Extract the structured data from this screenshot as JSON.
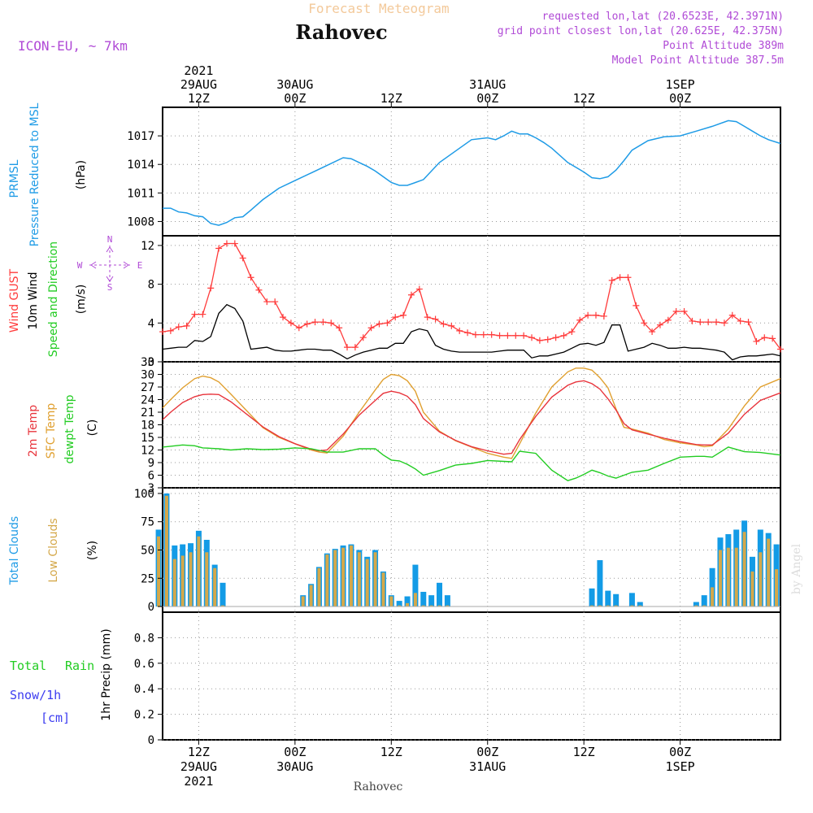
{
  "header": {
    "super_title": "Forecast Meteogram",
    "location": "Rahovec",
    "model": "ICON-EU, ~ 7km",
    "requested": "requested lon,lat (20.6523E, 42.3971N)",
    "grid": "grid point closest lon,lat (20.625E, 42.375N)",
    "point_alt": "Point Altitude 389m",
    "model_alt": "Model Point Altitude 387.5m",
    "footer_location": "Rahovec",
    "watermark": "by Angel"
  },
  "colors": {
    "pressure": "#1e9be6",
    "gust": "#ff3b3b",
    "wind": "#000000",
    "temp2m": "#e8343c",
    "sfc": "#e0a030",
    "dew": "#22cc22",
    "total_cloud": "#139be6",
    "low_cloud": "#d4a84a",
    "title_orange": "#f3c99a",
    "purple": "#b04ad6",
    "rain": "#22cc22",
    "snow": "#3c3cf0"
  },
  "time_axis": {
    "top_labels": [
      {
        "hour": 12,
        "l1": "2021",
        "l2": "29AUG",
        "l3": "12Z"
      },
      {
        "hour": 24,
        "l1": "",
        "l2": "30AUG",
        "l3": "00Z"
      },
      {
        "hour": 36,
        "l1": "",
        "l2": "",
        "l3": "12Z"
      },
      {
        "hour": 48,
        "l1": "",
        "l2": "31AUG",
        "l3": "00Z"
      },
      {
        "hour": 60,
        "l1": "",
        "l2": "",
        "l3": "12Z"
      },
      {
        "hour": 72,
        "l1": "",
        "l2": "1SEP",
        "l3": "00Z"
      }
    ],
    "bottom_labels": [
      {
        "hour": 12,
        "l1": "12Z",
        "l2": "29AUG",
        "l3": "2021"
      },
      {
        "hour": 24,
        "l1": "00Z",
        "l2": "30AUG",
        "l3": ""
      },
      {
        "hour": 36,
        "l1": "12Z",
        "l2": "",
        "l3": ""
      },
      {
        "hour": 48,
        "l1": "00Z",
        "l2": "31AUG",
        "l3": ""
      },
      {
        "hour": 60,
        "l1": "12Z",
        "l2": "",
        "l3": ""
      },
      {
        "hour": 72,
        "l1": "00Z",
        "l2": "1SEP",
        "l3": ""
      }
    ]
  },
  "panels": {
    "pressure": {
      "label1": "PRMSL",
      "label2": "Pressure Reduced to MSL",
      "unit": "(hPa)"
    },
    "wind": {
      "label_gust": "Wind GUST",
      "label_wind": "10m Wind",
      "label_dir": "Speed and Direction",
      "unit": "(m/s)",
      "compass_n": "N",
      "compass_s": "S",
      "compass_w": "W",
      "compass_e": "E"
    },
    "temp": {
      "label1": "2m Temp",
      "label2": "SFC Temp",
      "label3": "dewpt Temp",
      "unit": "(C)"
    },
    "cloud": {
      "label1": "Total Clouds",
      "label2": "Low Clouds",
      "unit": "(%)"
    },
    "precip": {
      "label_rain1": "Total",
      "label_rain2": "Rain",
      "label_snow1": "Snow/1h",
      "label_snow2": "[cm]",
      "label_axis": "1hr Precip (mm)"
    }
  },
  "chart_data": [
    {
      "type": "line",
      "name": "PRMSL",
      "x_range_hours": [
        7.5,
        84.5
      ],
      "ylim": [
        1006.5,
        1020
      ],
      "yticks": [
        1008,
        1011,
        1014,
        1017
      ],
      "x": [
        7.5,
        8.5,
        9.5,
        10.5,
        11.5,
        12.5,
        13.5,
        14.5,
        15.5,
        16.5,
        17.5,
        18.5,
        20,
        22,
        24,
        26,
        28,
        30,
        31,
        32,
        33,
        34,
        35,
        36,
        37,
        38,
        39,
        40,
        42,
        44,
        46,
        48,
        49,
        50,
        51,
        52,
        53,
        54,
        55,
        56,
        58,
        60,
        61,
        62,
        63,
        64,
        65,
        66,
        68,
        70,
        72,
        74,
        76,
        78,
        79,
        80,
        81,
        82,
        83,
        84.5
      ],
      "series": [
        {
          "name": "PRMSL",
          "values": [
            1009.4,
            1009.4,
            1009.0,
            1008.9,
            1008.6,
            1008.5,
            1007.8,
            1007.6,
            1007.9,
            1008.4,
            1008.5,
            1009.2,
            1010.3,
            1011.5,
            1012.3,
            1013.1,
            1013.9,
            1014.7,
            1014.6,
            1014.2,
            1013.8,
            1013.3,
            1012.7,
            1012.1,
            1011.8,
            1011.8,
            1012.1,
            1012.4,
            1014.2,
            1015.4,
            1016.6,
            1016.8,
            1016.6,
            1017.0,
            1017.5,
            1017.2,
            1017.2,
            1016.8,
            1016.3,
            1015.7,
            1014.2,
            1013.2,
            1012.6,
            1012.5,
            1012.7,
            1013.4,
            1014.4,
            1015.5,
            1016.5,
            1016.9,
            1017.0,
            1017.5,
            1018.0,
            1018.6,
            1018.5,
            1018.0,
            1017.5,
            1017.0,
            1016.6,
            1016.2
          ]
        }
      ]
    },
    {
      "type": "line",
      "name": "Wind",
      "x_range_hours": [
        7.5,
        84.5
      ],
      "ylim": [
        0,
        13
      ],
      "yticks": [
        0,
        4,
        8,
        12
      ],
      "x": [
        7.5,
        8.5,
        9.5,
        10.5,
        11.5,
        12.5,
        13.5,
        14.5,
        15.5,
        16.5,
        17.5,
        18.5,
        19.5,
        20.5,
        21.5,
        22.5,
        23.5,
        24.5,
        25.5,
        26.5,
        27.5,
        28.5,
        29.5,
        30.5,
        31.5,
        32.5,
        33.5,
        34.5,
        35.5,
        36.5,
        37.5,
        38.5,
        39.5,
        40.5,
        41.5,
        42.5,
        43.5,
        44.5,
        45.5,
        46.5,
        47.5,
        48.5,
        49.5,
        50.5,
        51.5,
        52.5,
        53.5,
        54.5,
        55.5,
        56.5,
        57.5,
        58.5,
        59.5,
        60.5,
        61.5,
        62.5,
        63.5,
        64.5,
        65.5,
        66.5,
        67.5,
        68.5,
        69.5,
        70.5,
        71.5,
        72.5,
        73.5,
        74.5,
        75.5,
        76.5,
        77.5,
        78.5,
        79.5,
        80.5,
        81.5,
        82.5,
        83.5,
        84.5
      ],
      "series": [
        {
          "name": "Wind GUST",
          "values": [
            3.1,
            3.2,
            3.6,
            3.7,
            4.9,
            4.9,
            7.6,
            11.7,
            12.2,
            12.2,
            10.7,
            8.7,
            7.4,
            6.2,
            6.2,
            4.6,
            4.0,
            3.5,
            3.9,
            4.1,
            4.1,
            4.0,
            3.5,
            1.5,
            1.5,
            2.5,
            3.5,
            3.9,
            4.0,
            4.6,
            4.8,
            6.9,
            7.5,
            4.6,
            4.4,
            3.9,
            3.7,
            3.2,
            3.0,
            2.8,
            2.8,
            2.8,
            2.7,
            2.7,
            2.7,
            2.7,
            2.5,
            2.2,
            2.3,
            2.5,
            2.7,
            3.1,
            4.3,
            4.8,
            4.8,
            4.7,
            8.4,
            8.7,
            8.7,
            5.8,
            4.0,
            3.1,
            3.8,
            4.3,
            5.2,
            5.2,
            4.2,
            4.1,
            4.1,
            4.1,
            4.0,
            4.8,
            4.2,
            4.1,
            2.1,
            2.5,
            2.4,
            1.3
          ]
        },
        {
          "name": "10m Wind",
          "values": [
            1.3,
            1.4,
            1.5,
            1.5,
            2.2,
            2.1,
            2.6,
            5.0,
            5.9,
            5.5,
            4.2,
            1.3,
            1.4,
            1.5,
            1.2,
            1.1,
            1.1,
            1.2,
            1.3,
            1.3,
            1.2,
            1.2,
            0.8,
            0.3,
            0.7,
            1.0,
            1.2,
            1.4,
            1.4,
            1.9,
            1.9,
            3.1,
            3.4,
            3.2,
            1.7,
            1.3,
            1.1,
            1.0,
            1.0,
            1.0,
            1.0,
            1.0,
            1.1,
            1.2,
            1.2,
            1.2,
            0.4,
            0.6,
            0.6,
            0.8,
            1.0,
            1.4,
            1.8,
            1.9,
            1.7,
            2.0,
            3.8,
            3.8,
            1.1,
            1.3,
            1.5,
            1.9,
            1.7,
            1.4,
            1.4,
            1.5,
            1.4,
            1.4,
            1.3,
            1.2,
            1.0,
            0.2,
            0.5,
            0.6,
            0.6,
            0.7,
            0.8,
            0.6
          ]
        }
      ]
    },
    {
      "type": "line",
      "name": "Temperature",
      "x_range_hours": [
        7.5,
        84.5
      ],
      "ylim": [
        3,
        33
      ],
      "yticks": [
        3,
        6,
        9,
        12,
        15,
        18,
        21,
        24,
        27,
        30,
        33
      ],
      "x": [
        7.5,
        8.5,
        10,
        11.5,
        12.5,
        13.5,
        14.5,
        16,
        18,
        20,
        22,
        24,
        26,
        27,
        28,
        30,
        32,
        34,
        35,
        36,
        37,
        38,
        39,
        40,
        42,
        44,
        46,
        48,
        50,
        51,
        52,
        54,
        56,
        58,
        59,
        60,
        61,
        62,
        63,
        64,
        65,
        66,
        68,
        70,
        72,
        74,
        75,
        76,
        78,
        80,
        82,
        84.5
      ],
      "series": [
        {
          "name": "2m Temp",
          "values": [
            19.2,
            21.0,
            23.3,
            24.7,
            25.2,
            25.3,
            25.2,
            23.5,
            20.5,
            17.5,
            15.2,
            13.5,
            12.2,
            11.8,
            12.0,
            15.8,
            20.3,
            23.8,
            25.5,
            26.0,
            25.6,
            24.8,
            22.8,
            19.5,
            16.3,
            14.3,
            12.8,
            11.8,
            11.0,
            11.2,
            14.5,
            20.0,
            24.6,
            27.4,
            28.2,
            28.5,
            27.8,
            26.5,
            24.2,
            21.5,
            18.3,
            16.8,
            15.8,
            14.8,
            14.0,
            13.3,
            13.2,
            13.2,
            16.0,
            20.5,
            23.8,
            25.6
          ]
        },
        {
          "name": "SFC Temp",
          "values": [
            22.0,
            24.0,
            26.8,
            29.0,
            29.6,
            29.2,
            28.2,
            25.3,
            21.3,
            17.3,
            15.0,
            13.5,
            12.0,
            11.5,
            11.3,
            15.3,
            21.0,
            26.3,
            28.8,
            30.0,
            29.7,
            28.5,
            26.0,
            21.0,
            16.5,
            14.2,
            12.7,
            11.2,
            10.3,
            10.0,
            13.5,
            20.8,
            27.0,
            30.6,
            31.5,
            31.5,
            31.0,
            29.2,
            26.8,
            21.8,
            17.4,
            17.0,
            16.0,
            14.5,
            13.7,
            13.2,
            12.8,
            13.0,
            17.0,
            22.5,
            27.0,
            29.0
          ]
        },
        {
          "name": "dewpt Temp",
          "values": [
            12.7,
            12.9,
            13.2,
            13.0,
            12.5,
            12.4,
            12.3,
            12.0,
            12.3,
            12.1,
            12.2,
            12.5,
            12.3,
            11.9,
            11.5,
            11.5,
            12.3,
            12.3,
            10.8,
            9.6,
            9.4,
            8.6,
            7.5,
            6.0,
            7.1,
            8.4,
            8.8,
            9.5,
            9.3,
            9.2,
            11.7,
            11.2,
            7.2,
            4.7,
            5.3,
            6.2,
            7.2,
            6.6,
            5.8,
            5.3,
            6.0,
            6.7,
            7.2,
            8.8,
            10.3,
            10.5,
            10.5,
            10.3,
            12.7,
            11.6,
            11.4,
            10.8
          ]
        }
      ]
    },
    {
      "type": "bar",
      "name": "Clouds",
      "x_range_hours": [
        7.5,
        84.5
      ],
      "ylim": [
        -5,
        105
      ],
      "yticks": [
        0,
        25,
        50,
        75,
        100
      ],
      "x": [
        7,
        8,
        9,
        10,
        11,
        12,
        13,
        14,
        15,
        16,
        17,
        18,
        19,
        20,
        21,
        22,
        23,
        24,
        25,
        26,
        27,
        28,
        29,
        30,
        31,
        32,
        33,
        34,
        35,
        36,
        37,
        38,
        39,
        40,
        41,
        42,
        43,
        44,
        45,
        46,
        47,
        48,
        49,
        50,
        51,
        52,
        53,
        54,
        55,
        56,
        57,
        58,
        59,
        60,
        61,
        62,
        63,
        64,
        65,
        66,
        67,
        68,
        69,
        70,
        71,
        72,
        73,
        74,
        75,
        76,
        77,
        78,
        79,
        80,
        81,
        82,
        83,
        84
      ],
      "series": [
        {
          "name": "Total Clouds",
          "values": [
            68,
            100,
            54,
            55,
            56,
            67,
            59,
            37,
            21,
            0,
            0,
            0,
            0,
            0,
            0,
            0,
            0,
            0,
            10,
            20,
            35,
            47,
            51,
            54,
            55,
            50,
            44,
            50,
            31,
            10,
            5,
            9,
            37,
            13,
            10,
            21,
            10,
            0,
            0,
            0,
            0,
            0,
            0,
            0,
            0,
            0,
            0,
            0,
            0,
            0,
            0,
            0,
            0,
            0,
            16,
            41,
            14,
            11,
            0,
            12,
            4,
            0,
            0,
            0,
            0,
            0,
            0,
            4,
            10,
            34,
            61,
            64,
            68,
            76,
            44,
            68,
            65,
            55
          ]
        },
        {
          "name": "Low Clouds",
          "values": [
            62,
            98,
            42,
            45,
            48,
            62,
            48,
            34,
            1,
            0,
            0,
            0,
            0,
            0,
            0,
            0,
            0,
            0,
            9,
            19,
            34,
            46,
            50,
            52,
            54,
            48,
            42,
            48,
            30,
            9,
            1,
            3,
            12,
            1,
            1,
            1,
            1,
            0,
            0,
            0,
            0,
            0,
            0,
            0,
            0,
            0,
            0,
            0,
            0,
            0,
            0,
            0,
            0,
            0,
            1,
            1,
            1,
            1,
            0,
            1,
            1,
            0,
            0,
            0,
            0,
            0,
            0,
            1,
            1,
            17,
            50,
            52,
            52,
            66,
            31,
            48,
            60,
            33
          ]
        }
      ]
    },
    {
      "type": "bar",
      "name": "Precipitation",
      "x_range_hours": [
        7.5,
        84.5
      ],
      "ylim": [
        0,
        1.0
      ],
      "yticks": [
        0,
        0.2,
        0.4,
        0.6,
        0.8
      ],
      "x": [],
      "series": [
        {
          "name": "Total Rain",
          "values": []
        },
        {
          "name": "Snow/1h",
          "values": []
        }
      ]
    }
  ]
}
